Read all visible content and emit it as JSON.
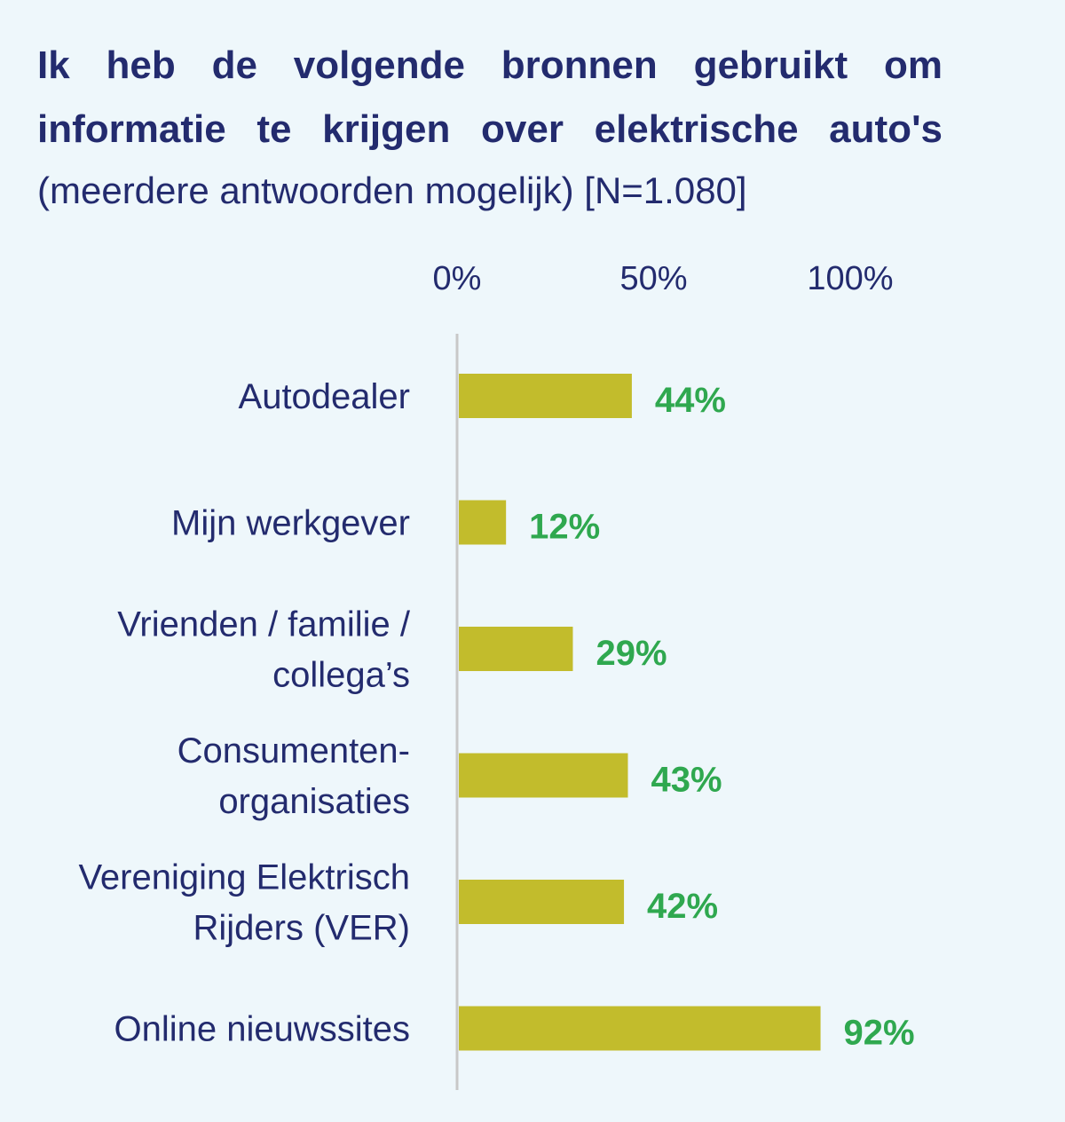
{
  "title_line1": "Ik heb de volgende bronnen gebruikt om",
  "title_line2": "informatie te krijgen over elektrische auto's",
  "subtitle": "(meerdere antwoorden mogelijk) [N=1.080]",
  "colors": {
    "title": "#232b6e",
    "bar": "#c2bc2c",
    "value_label": "#2fa84f",
    "axis": "#c8c8c8",
    "background": "#eef7fb"
  },
  "chart_data": {
    "type": "bar",
    "orientation": "horizontal",
    "categories": [
      [
        "Autodealer"
      ],
      [
        "Mijn werkgever"
      ],
      [
        "Vrienden / familie /",
        "collega’s"
      ],
      [
        "Consumenten-",
        "organisaties"
      ],
      [
        "Vereniging Elektrisch",
        "Rijders (VER)"
      ],
      [
        "Online nieuwssites"
      ]
    ],
    "values": [
      44,
      12,
      29,
      43,
      42,
      92
    ],
    "value_labels": [
      "44%",
      "12%",
      "29%",
      "43%",
      "42%",
      "92%"
    ],
    "xlim": [
      0,
      100
    ],
    "xticks": [
      0,
      50,
      100
    ],
    "xtick_labels": [
      "0%",
      "50%",
      "100%"
    ],
    "grid": false,
    "legend": "none"
  }
}
